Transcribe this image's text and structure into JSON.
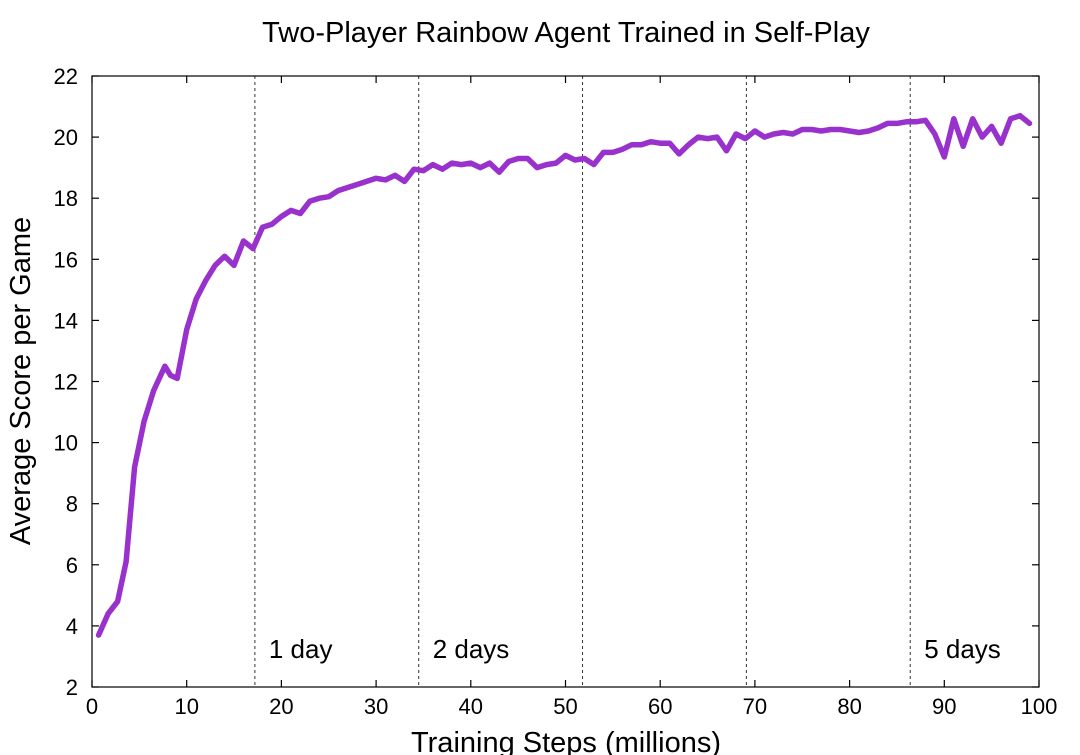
{
  "chart_data": {
    "type": "line",
    "title": "Two-Player Rainbow Agent Trained in Self-Play",
    "xlabel": "Training Steps (millions)",
    "ylabel": "Average Score per Game",
    "xlim": [
      0,
      100
    ],
    "ylim": [
      2,
      22
    ],
    "xticks": [
      0,
      10,
      20,
      30,
      40,
      50,
      60,
      70,
      80,
      90,
      100
    ],
    "yticks": [
      2,
      4,
      6,
      8,
      10,
      12,
      14,
      16,
      18,
      20,
      22
    ],
    "grid": false,
    "legend": "none",
    "series": [
      {
        "color": "#9932cc",
        "x": [
          0.7,
          1.7,
          2.7,
          3.6,
          4.5,
          5.5,
          6.5,
          7.7,
          8.3,
          9.0,
          10.0,
          11.0,
          12.0,
          13.0,
          14.0,
          15.0,
          16.0,
          17.0,
          18.0,
          19.0,
          20.0,
          21.0,
          22.0,
          23.0,
          24.0,
          25.0,
          26.0,
          27.0,
          28.0,
          29.0,
          30.0,
          31.0,
          32.0,
          33.0,
          34.0,
          35.0,
          36.0,
          37.0,
          38.0,
          39.0,
          40.0,
          41.0,
          42.0,
          43.0,
          44.0,
          45.0,
          46.0,
          47.0,
          48.0,
          49.0,
          50.0,
          51.0,
          52.0,
          53.0,
          54.0,
          55.0,
          56.0,
          57.0,
          58.0,
          59.0,
          60.0,
          61.0,
          62.0,
          63.0,
          64.0,
          65.0,
          66.0,
          67.0,
          68.0,
          69.0,
          70.0,
          71.0,
          72.0,
          73.0,
          74.0,
          75.0,
          76.0,
          77.0,
          78.0,
          79.0,
          80.0,
          81.0,
          82.0,
          83.0,
          84.0,
          85.0,
          86.0,
          87.0,
          88.0,
          89.0,
          90.0,
          91.0,
          92.0,
          93.0,
          94.0,
          95.0,
          96.0,
          97.0,
          98.0,
          99.0
        ],
        "y": [
          3.7,
          4.4,
          4.8,
          6.1,
          9.2,
          10.7,
          11.7,
          12.5,
          12.2,
          12.1,
          13.7,
          14.7,
          15.3,
          15.8,
          16.1,
          15.8,
          16.6,
          16.35,
          17.05,
          17.15,
          17.4,
          17.6,
          17.5,
          17.9,
          18.0,
          18.05,
          18.25,
          18.35,
          18.45,
          18.55,
          18.65,
          18.6,
          18.75,
          18.55,
          18.95,
          18.9,
          19.1,
          18.95,
          19.15,
          19.1,
          19.15,
          19.0,
          19.15,
          18.85,
          19.2,
          19.3,
          19.3,
          19.0,
          19.1,
          19.15,
          19.4,
          19.25,
          19.3,
          19.1,
          19.5,
          19.5,
          19.6,
          19.75,
          19.75,
          19.85,
          19.8,
          19.8,
          19.45,
          19.75,
          20.0,
          19.95,
          20.0,
          19.55,
          20.1,
          19.95,
          20.2,
          20.0,
          20.1,
          20.15,
          20.1,
          20.25,
          20.25,
          20.2,
          20.25,
          20.25,
          20.2,
          20.15,
          20.2,
          20.3,
          20.45,
          20.45,
          20.5,
          20.5,
          20.55,
          20.1,
          19.35,
          20.6,
          19.7,
          20.6,
          20.0,
          20.35,
          19.8,
          20.6,
          20.7,
          20.45
        ]
      }
    ],
    "vlines": [
      17.2,
      34.5,
      51.8,
      69.1,
      86.4
    ],
    "annotations": [
      {
        "text": "1 day",
        "x": 17.2
      },
      {
        "text": "2 days",
        "x": 34.5
      },
      {
        "text": "5 days",
        "x": 86.4
      }
    ]
  }
}
